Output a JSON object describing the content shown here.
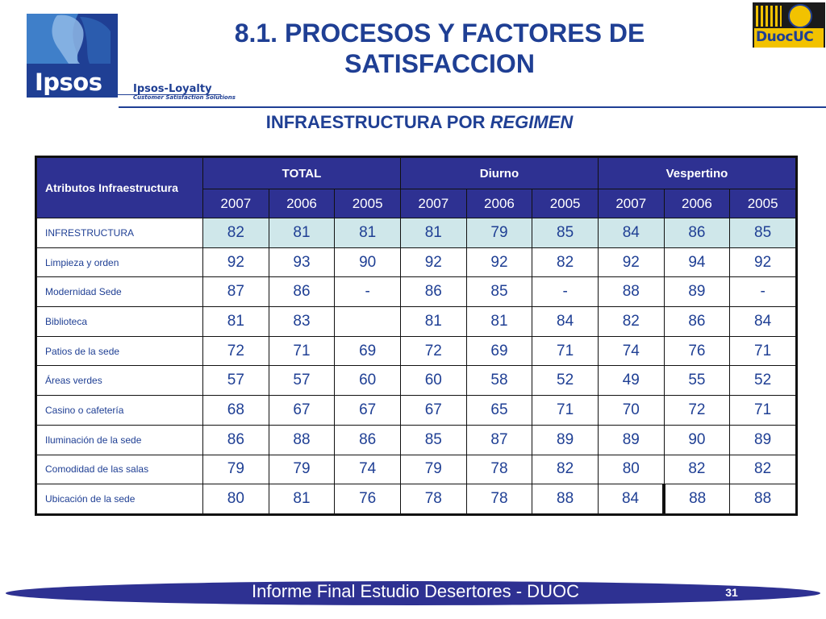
{
  "header": {
    "title": "8.1. PROCESOS Y FACTORES DE SATISFACCION",
    "subtitle_prefix": "INFRAESTRUCTURA POR",
    "subtitle_emphasis": "REGIMEN"
  },
  "logos": {
    "ipsos": "Ipsos",
    "loyalty_title": "Ipsos-Loyalty",
    "loyalty_tagline": "Customer Satisfaction Solutions",
    "duoc": "DuocUC"
  },
  "table": {
    "attribute_header": "Atributos Infraestructura",
    "groups": [
      "TOTAL",
      "Diurno",
      "Vespertino"
    ],
    "years": [
      "2007",
      "2006",
      "2005",
      "2007",
      "2006",
      "2005",
      "2007",
      "2006",
      "2005"
    ],
    "rows": [
      {
        "label": "INFRESTRUCTURA",
        "values": [
          "82",
          "81",
          "81",
          "81",
          "79",
          "85",
          "84",
          "86",
          "85"
        ]
      },
      {
        "label": "Limpieza y orden",
        "values": [
          "92",
          "93",
          "90",
          "92",
          "92",
          "82",
          "92",
          "94",
          "92"
        ]
      },
      {
        "label": "Modernidad  Sede",
        "values": [
          "87",
          "86",
          "-",
          "86",
          "85",
          "-",
          "88",
          "89",
          "-"
        ]
      },
      {
        "label": "Biblioteca",
        "values": [
          "81",
          "83",
          "",
          "81",
          "81",
          "84",
          "82",
          "86",
          "84"
        ]
      },
      {
        "label": "Patios de la sede",
        "values": [
          "72",
          "71",
          "69",
          "72",
          "69",
          "71",
          "74",
          "76",
          "71"
        ]
      },
      {
        "label": "Áreas verdes",
        "values": [
          "57",
          "57",
          "60",
          "60",
          "58",
          "52",
          "49",
          "55",
          "52"
        ]
      },
      {
        "label": "Casino o cafetería",
        "values": [
          "68",
          "67",
          "67",
          "67",
          "65",
          "71",
          "70",
          "72",
          "71"
        ]
      },
      {
        "label": "Iluminación de la sede",
        "values": [
          "86",
          "88",
          "86",
          "85",
          "87",
          "89",
          "89",
          "90",
          "89"
        ]
      },
      {
        "label": "Comodidad de las salas",
        "values": [
          "79",
          "79",
          "74",
          "79",
          "78",
          "82",
          "80",
          "82",
          "82"
        ]
      },
      {
        "label": "Ubicación de la sede",
        "values": [
          "80",
          "81",
          "76",
          "78",
          "78",
          "88",
          "84",
          "88",
          "88"
        ]
      }
    ]
  },
  "footer": {
    "text": "Informe Final Estudio Desertores - DUOC",
    "page_number": "31"
  },
  "colors": {
    "brand_blue": "#1f3f94",
    "header_fill": "#2e3192",
    "highlight_row": "#cfe7ea"
  }
}
